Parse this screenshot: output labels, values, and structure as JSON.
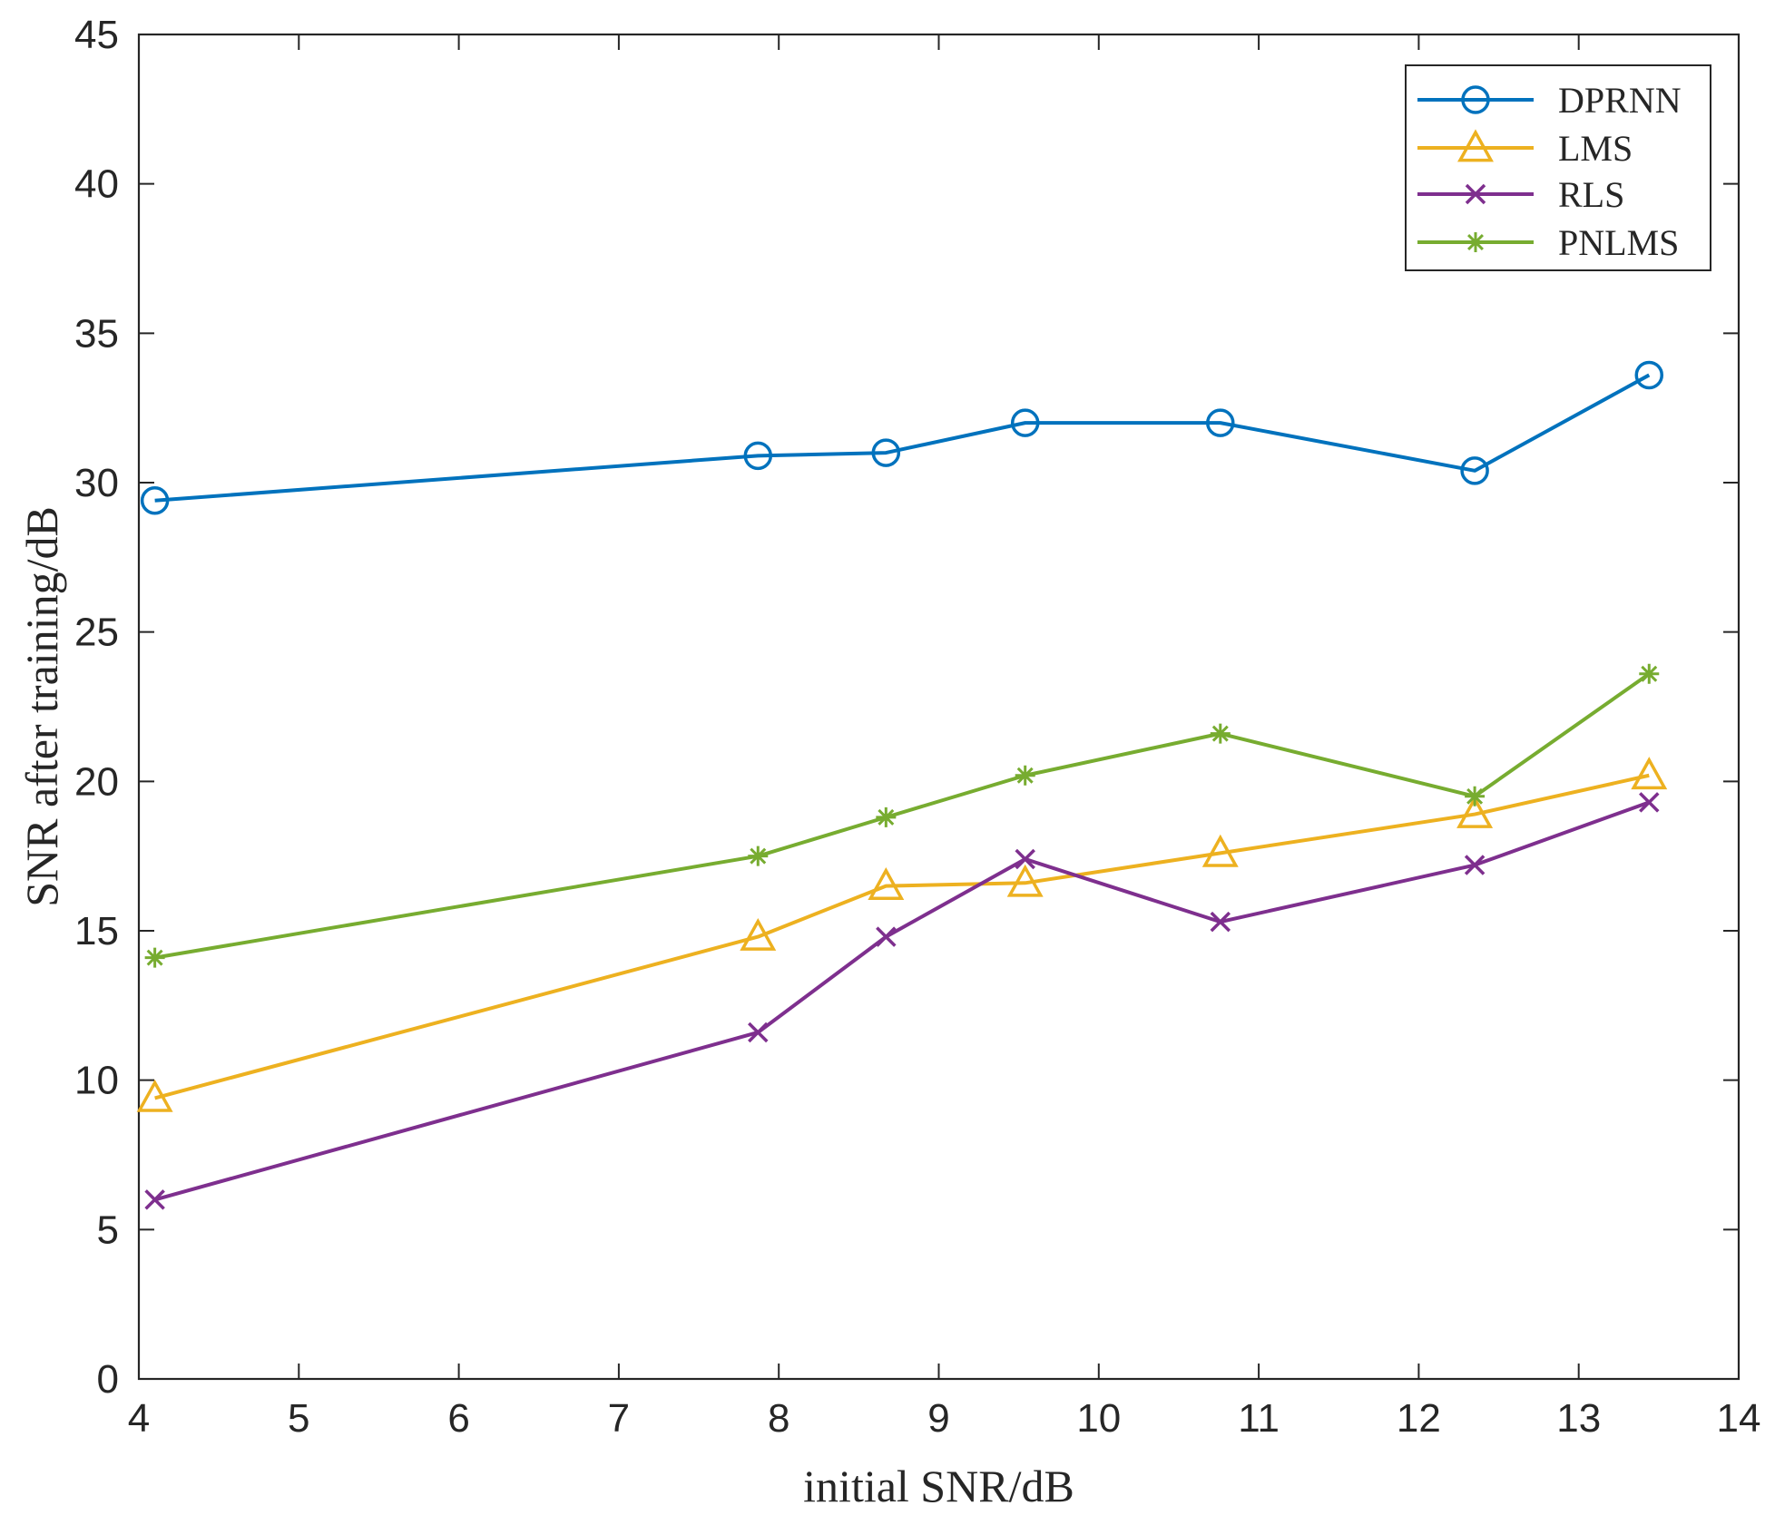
{
  "chart_data": {
    "type": "line",
    "title": "",
    "xlabel": "initial SNR/dB",
    "ylabel": "SNR after training/dB",
    "xlim": [
      4,
      14
    ],
    "ylim": [
      0,
      45
    ],
    "xticks": [
      4,
      5,
      6,
      7,
      8,
      9,
      10,
      11,
      12,
      13,
      14
    ],
    "yticks": [
      0,
      5,
      10,
      15,
      20,
      25,
      30,
      35,
      40,
      45
    ],
    "x": [
      4.1,
      7.87,
      8.67,
      9.54,
      10.76,
      12.35,
      13.44
    ],
    "grid": false,
    "legend_position": "top-right",
    "series": [
      {
        "name": "DPRNN",
        "color": "#0072BD",
        "marker": "circle",
        "values": [
          29.4,
          30.9,
          31.0,
          32.0,
          32.0,
          30.4,
          33.6
        ]
      },
      {
        "name": "LMS",
        "color": "#EDB120",
        "marker": "triangle",
        "values": [
          9.4,
          14.8,
          16.5,
          16.6,
          17.6,
          18.9,
          20.2
        ]
      },
      {
        "name": "RLS",
        "color": "#7E2F8E",
        "marker": "x",
        "values": [
          6.0,
          11.6,
          14.8,
          17.4,
          15.3,
          17.2,
          19.3
        ]
      },
      {
        "name": "PNLMS",
        "color": "#77AC30",
        "marker": "asterisk",
        "values": [
          14.1,
          17.5,
          18.8,
          20.2,
          21.6,
          19.5,
          23.6
        ]
      }
    ]
  }
}
